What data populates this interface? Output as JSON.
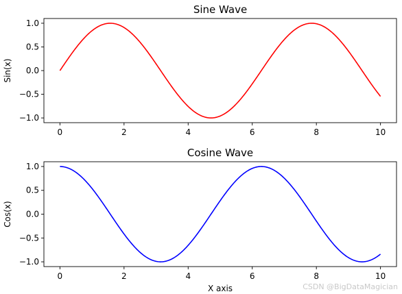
{
  "chart_data": [
    {
      "type": "line",
      "title": "Sine Wave",
      "xlabel": "",
      "ylabel": "Sin(x)",
      "xlim": [
        -0.5,
        10.5
      ],
      "ylim": [
        -1.1,
        1.1
      ],
      "xticks": [
        0,
        2,
        4,
        6,
        8,
        10
      ],
      "yticks": [
        -1.0,
        -0.5,
        0.0,
        0.5,
        1.0
      ],
      "xtick_labels": [
        "0",
        "2",
        "4",
        "6",
        "8",
        "10"
      ],
      "ytick_labels": [
        "−1.0",
        "−0.5",
        "0.0",
        "0.5",
        "1.0"
      ],
      "grid": false,
      "series": [
        {
          "function": "sin",
          "x_range": [
            0,
            10
          ],
          "color": "#ff0000"
        }
      ]
    },
    {
      "type": "line",
      "title": "Cosine Wave",
      "xlabel": "X axis",
      "ylabel": "Cos(x)",
      "xlim": [
        -0.5,
        10.5
      ],
      "ylim": [
        -1.1,
        1.1
      ],
      "xticks": [
        0,
        2,
        4,
        6,
        8,
        10
      ],
      "yticks": [
        -1.0,
        -0.5,
        0.0,
        0.5,
        1.0
      ],
      "xtick_labels": [
        "0",
        "2",
        "4",
        "6",
        "8",
        "10"
      ],
      "ytick_labels": [
        "−1.0",
        "−0.5",
        "0.0",
        "0.5",
        "1.0"
      ],
      "grid": false,
      "series": [
        {
          "function": "cos",
          "x_range": [
            0,
            10
          ],
          "color": "#0000ff"
        }
      ]
    }
  ],
  "watermark": "CSDN @BigDataMagician"
}
